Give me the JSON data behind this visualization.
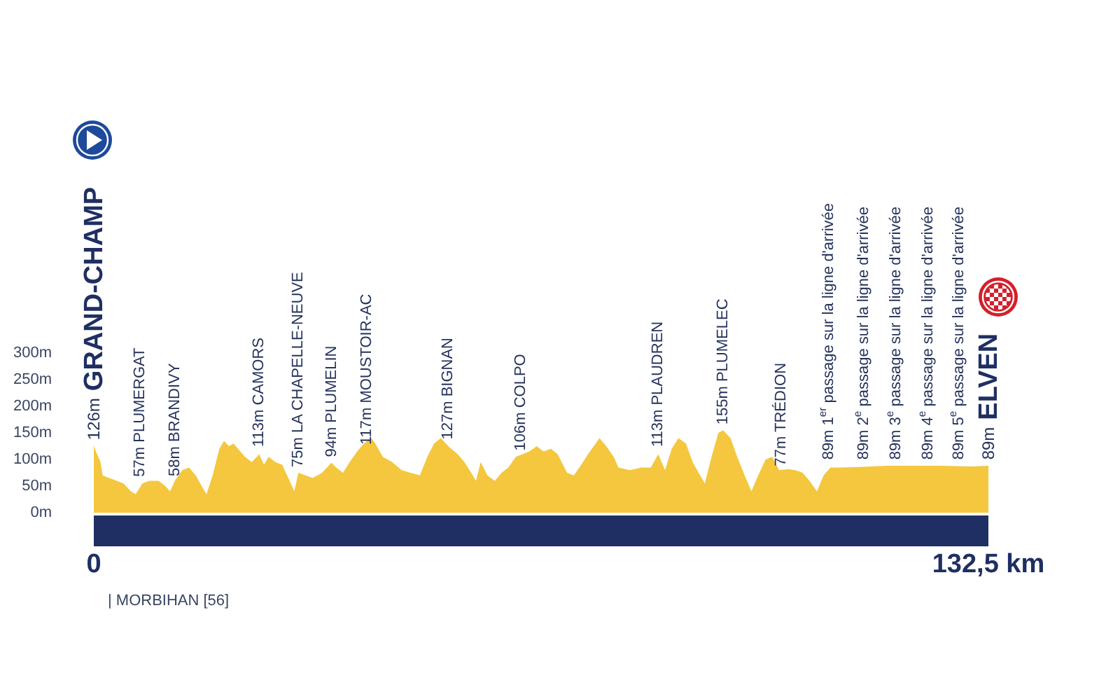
{
  "chart_data": {
    "type": "area",
    "color": "#f4c73e",
    "x": [
      0,
      0.3,
      1.0,
      1.3,
      2.3,
      3.4,
      4.4,
      5.5,
      6.2,
      7.2,
      8.2,
      9.6,
      10.6,
      11.3,
      12.0,
      13.1,
      14.1,
      15.1,
      16.2,
      16.7,
      17.6,
      18.6,
      19.3,
      20.0,
      20.7,
      21.7,
      22.4,
      23.4,
      24.5,
      25.2,
      25.9,
      26.9,
      27.9,
      29.0,
      29.7,
      30.3,
      31.4,
      32.4,
      33.8,
      35.2,
      35.9,
      36.9,
      37.9,
      39.0,
      40.0,
      41.1,
      41.7,
      42.8,
      44.2,
      45.6,
      46.9,
      48.3,
      49.4,
      50.4,
      51.4,
      52.5,
      53.9,
      54.9,
      55.9,
      56.6,
      57.3,
      58.3,
      59.4,
      60.4,
      61.4,
      62.5,
      63.5,
      64.5,
      65.6,
      66.6,
      67.7,
      68.7,
      70.1,
      71.1,
      72.2,
      73.2,
      74.9,
      75.9,
      77.0,
      77.7,
      79.4,
      81.1,
      82.5,
      83.6,
      84.6,
      85.6,
      86.6,
      87.7,
      88.7,
      89.8,
      90.5,
      91.5,
      92.5,
      93.2,
      94.3,
      95.3,
      96.4,
      97.4,
      98.4,
      99.5,
      100.5,
      101.5,
      102.9,
      103.9,
      105.0,
      106.0,
      107.1,
      108.1,
      109.1,
      110.5,
      113.3,
      117.4,
      121.6,
      125.7,
      129.9,
      132.5
    ],
    "values": [
      126,
      115,
      95,
      70,
      65,
      60,
      55,
      40,
      35,
      55,
      60,
      60,
      50,
      40,
      60,
      80,
      85,
      70,
      45,
      35,
      70,
      120,
      135,
      125,
      130,
      115,
      105,
      95,
      110,
      90,
      105,
      95,
      90,
      60,
      40,
      75,
      70,
      65,
      75,
      94,
      85,
      75,
      95,
      115,
      130,
      140,
      130,
      105,
      95,
      80,
      75,
      70,
      105,
      130,
      140,
      125,
      110,
      95,
      75,
      60,
      95,
      70,
      60,
      75,
      85,
      105,
      110,
      115,
      125,
      115,
      120,
      110,
      75,
      70,
      90,
      110,
      140,
      125,
      105,
      85,
      80,
      85,
      85,
      110,
      80,
      120,
      140,
      130,
      95,
      70,
      55,
      105,
      150,
      155,
      140,
      105,
      70,
      40,
      70,
      100,
      105,
      80,
      82,
      80,
      75,
      60,
      40,
      70,
      85,
      85,
      86,
      88,
      88,
      88,
      87,
      88
    ],
    "xlim": [
      0,
      132.5
    ],
    "xticks": [
      {
        "value": 0,
        "label": "0"
      },
      {
        "value": 132.5,
        "label": "132,5 km"
      }
    ],
    "ylim": [
      0,
      300
    ],
    "yticks": [
      {
        "value": 0,
        "label": "0m"
      },
      {
        "value": 50,
        "label": "50m"
      },
      {
        "value": 100,
        "label": "100m"
      },
      {
        "value": 150,
        "label": "150m"
      },
      {
        "value": 200,
        "label": "200m"
      },
      {
        "value": 250,
        "label": "250m"
      },
      {
        "value": 300,
        "label": "300m"
      }
    ],
    "annotations": [
      {
        "text": "126m GRAND-CHAMP",
        "x": 0,
        "y": 126
      },
      {
        "text": "57m PLUMERGAT",
        "x": 6.8,
        "y": 57
      },
      {
        "text": "58m BRANDIVY",
        "x": 12.0,
        "y": 58
      },
      {
        "text": "113m CAMORS",
        "x": 24.5,
        "y": 113
      },
      {
        "text": "75m LA CHAPELLE-NEUVE",
        "x": 30.3,
        "y": 75
      },
      {
        "text": "94m PLUMELIN",
        "x": 35.2,
        "y": 94
      },
      {
        "text": "117m MOUSTOIR-AC",
        "x": 40.4,
        "y": 117
      },
      {
        "text": "127m BIGNAN",
        "x": 52.5,
        "y": 127
      },
      {
        "text": "106m COLPO",
        "x": 63.2,
        "y": 106
      },
      {
        "text": "113m PLAUDREN",
        "x": 83.6,
        "y": 113
      },
      {
        "text": "155m PLUMELEC",
        "x": 93.2,
        "y": 155
      },
      {
        "text": "77m TRÉDION",
        "x": 101.8,
        "y": 77
      },
      {
        "text": "89m 1$^{er}$ passage sur la ligne d'arrivée",
        "x": 108.9,
        "y": 89
      },
      {
        "text": "89m 2$^{e}$ passage sur la ligne d'arrivée",
        "x": 114.0,
        "y": 89
      },
      {
        "text": "89m 3$^{e}$ passage sur la ligne d'arrivée",
        "x": 118.8,
        "y": 89
      },
      {
        "text": "89m 4$^{e}$ passage sur la ligne d'arrivée",
        "x": 123.6,
        "y": 89
      },
      {
        "text": "89m 5$^{e}$ passage sur la ligne d'arrivée",
        "x": 128.1,
        "y": 89
      },
      {
        "text": "89m ELVEN",
        "x": 132.5,
        "y": 89
      },
      "| MORBIHAN [56]"
    ]
  }
}
